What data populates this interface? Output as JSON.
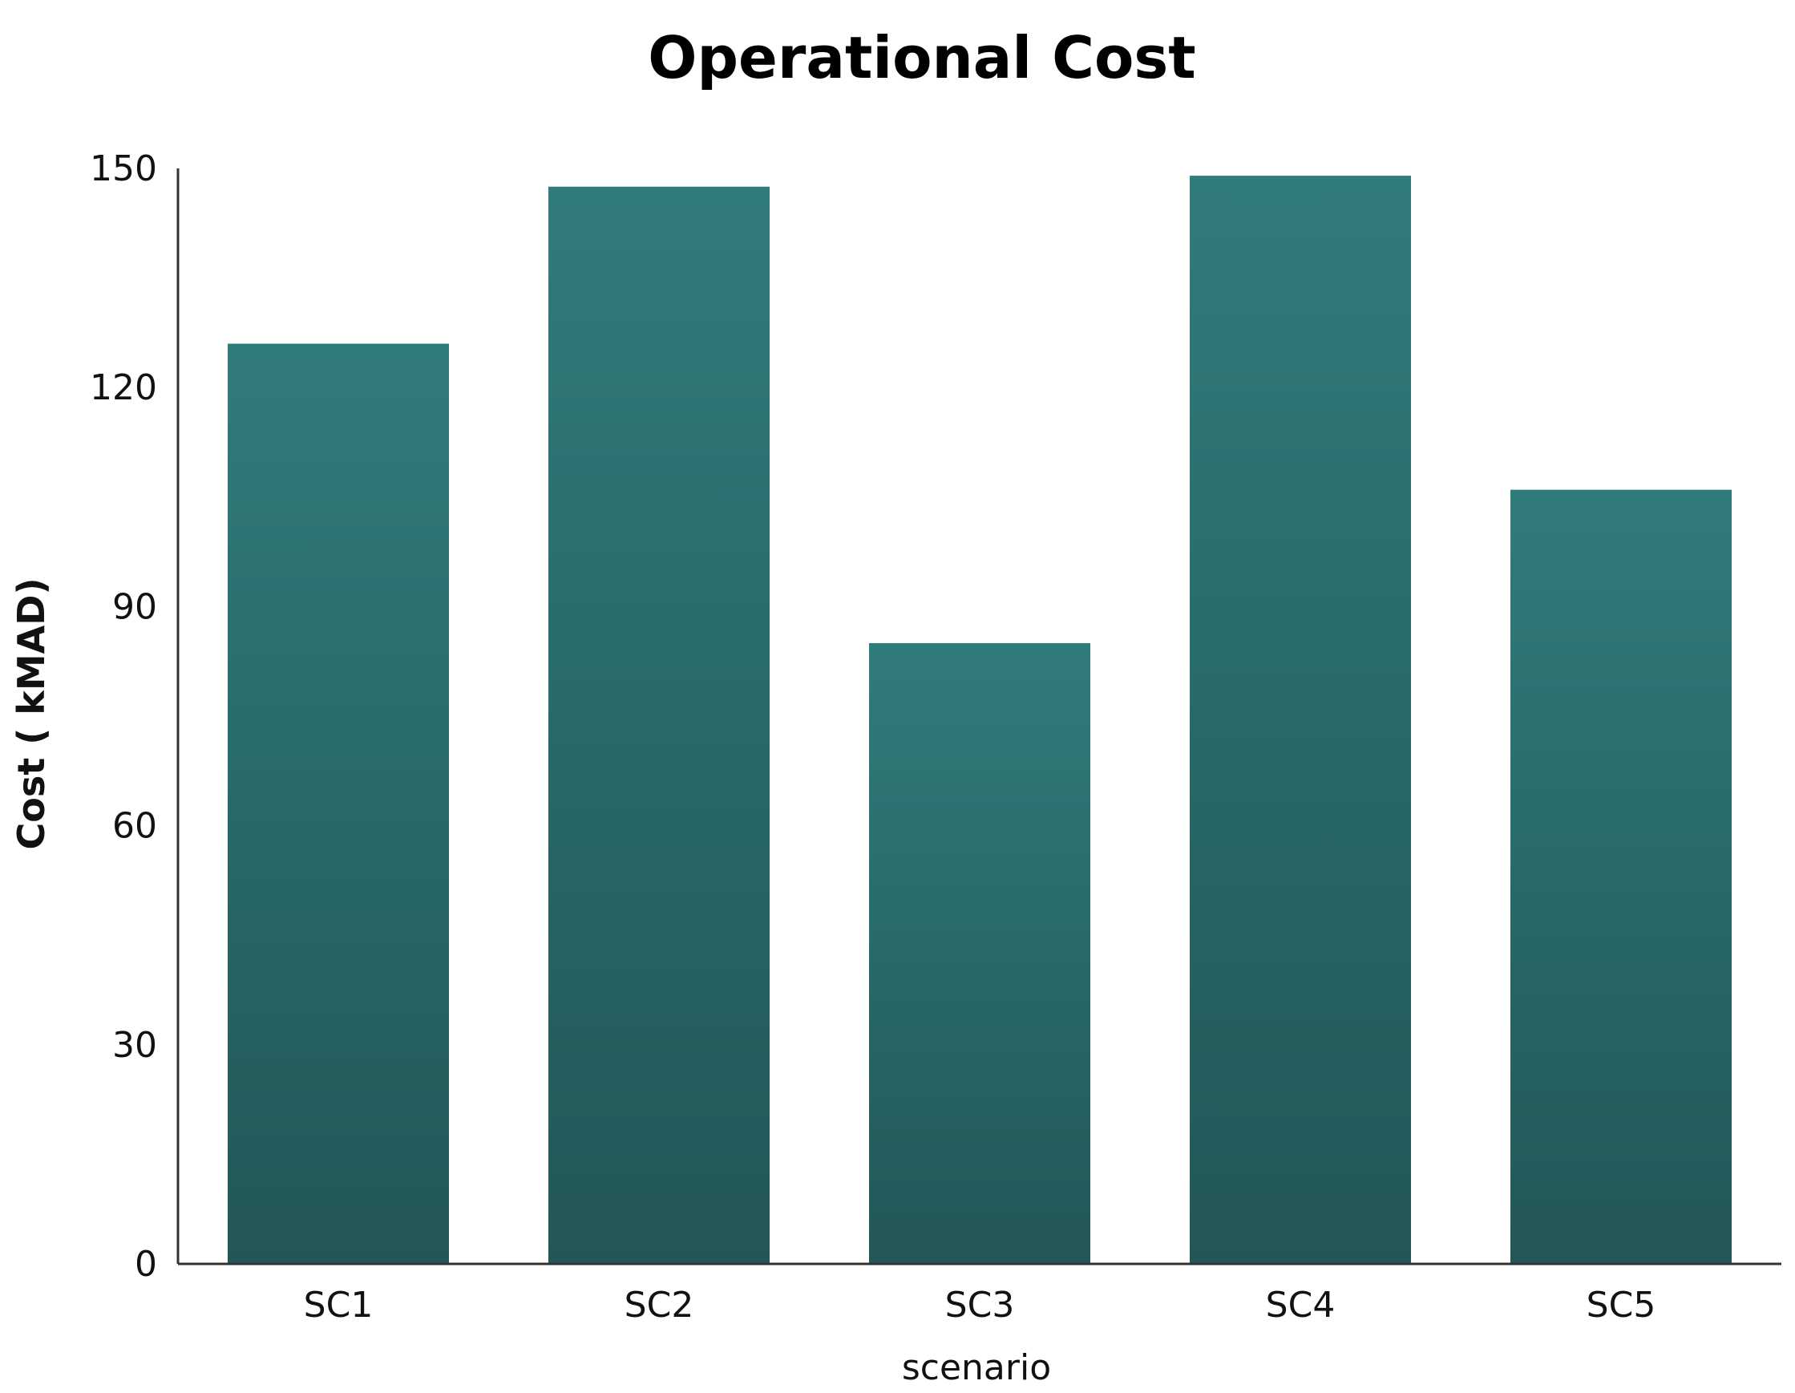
{
  "chart_data": {
    "type": "bar",
    "title": "Operational Cost",
    "xlabel": "scenario",
    "ylabel": "Cost ( kMAD)",
    "categories": [
      "SC1",
      "SC2",
      "SC3",
      "SC4",
      "SC5"
    ],
    "values": [
      126,
      147.5,
      85,
      149,
      106
    ],
    "ylim": [
      0,
      150
    ],
    "yticks": [
      0,
      30,
      60,
      90,
      120,
      150
    ],
    "grid": false,
    "legend": "none",
    "colors": {
      "bar_top": "#307c7b",
      "bar_bottom": "#235657",
      "axis": "#333333"
    }
  }
}
